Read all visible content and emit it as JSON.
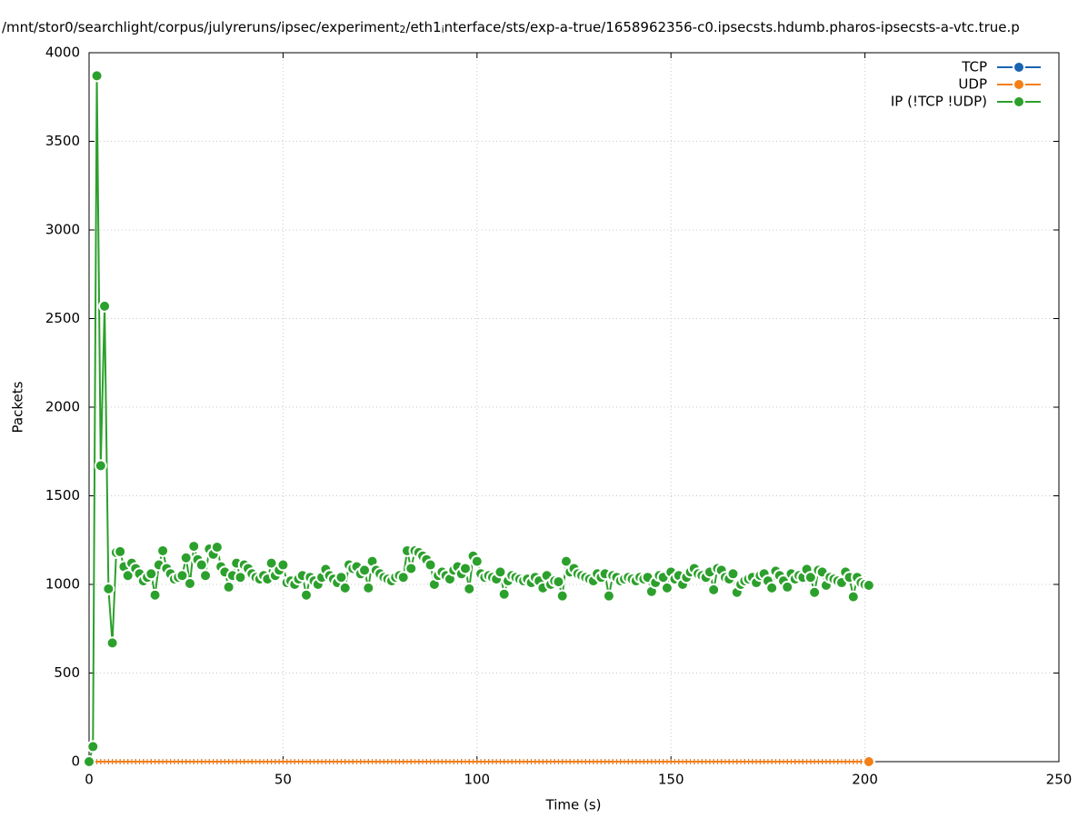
{
  "chart_data": {
    "type": "line",
    "title": [
      "/mnt/stor0/searchlight/corpus/julyreruns/ipsec/experiment",
      "2",
      "/eth1",
      "i",
      "nterface/sts/exp-a-true/1658962356-c0.ipsecsts.hdumb.pharos-ipsecsts-a-vtc.true.p"
    ],
    "x_label": "Time (s)",
    "y_label": "Packets",
    "xlim": [
      0,
      250
    ],
    "xticks": [
      0,
      50,
      100,
      150,
      200,
      250
    ],
    "ylim": [
      0,
      4000
    ],
    "yticks": [
      0,
      500,
      1000,
      1500,
      2000,
      2500,
      3000,
      3500,
      4000
    ],
    "grid": true,
    "legend": "top-right",
    "x": [
      0,
      1,
      2,
      3,
      4,
      5,
      6,
      7,
      8,
      9,
      10,
      11,
      12,
      13,
      14,
      15,
      16,
      17,
      18,
      19,
      20,
      21,
      22,
      23,
      24,
      25,
      26,
      27,
      28,
      29,
      30,
      31,
      32,
      33,
      34,
      35,
      36,
      37,
      38,
      39,
      40,
      41,
      42,
      43,
      44,
      45,
      46,
      47,
      48,
      49,
      50,
      51,
      52,
      53,
      54,
      55,
      56,
      57,
      58,
      59,
      60,
      61,
      62,
      63,
      64,
      65,
      66,
      67,
      68,
      69,
      70,
      71,
      72,
      73,
      74,
      75,
      76,
      77,
      78,
      79,
      80,
      81,
      82,
      83,
      84,
      85,
      86,
      87,
      88,
      89,
      90,
      91,
      92,
      93,
      94,
      95,
      96,
      97,
      98,
      99,
      100,
      101,
      102,
      103,
      104,
      105,
      106,
      107,
      108,
      109,
      110,
      111,
      112,
      113,
      114,
      115,
      116,
      117,
      118,
      119,
      120,
      121,
      122,
      123,
      124,
      125,
      126,
      127,
      128,
      129,
      130,
      131,
      132,
      133,
      134,
      135,
      136,
      137,
      138,
      139,
      140,
      141,
      142,
      143,
      144,
      145,
      146,
      147,
      148,
      149,
      150,
      151,
      152,
      153,
      154,
      155,
      156,
      157,
      158,
      159,
      160,
      161,
      162,
      163,
      164,
      165,
      166,
      167,
      168,
      169,
      170,
      171,
      172,
      173,
      174,
      175,
      176,
      177,
      178,
      179,
      180,
      181,
      182,
      183,
      184,
      185,
      186,
      187,
      188,
      189,
      190,
      191,
      192,
      193,
      194,
      195,
      196,
      197,
      198,
      199,
      200,
      201
    ],
    "series": [
      {
        "name": "TCP",
        "color": "#1a63b0",
        "values": [
          0,
          0,
          0,
          0,
          0,
          0,
          0,
          0,
          0,
          0,
          0,
          0,
          0,
          0,
          0,
          0,
          0,
          0,
          0,
          0,
          0,
          0,
          0,
          0,
          0,
          0,
          0,
          0,
          0,
          0,
          0,
          0,
          0,
          0,
          0,
          0,
          0,
          0,
          0,
          0,
          0,
          0,
          0,
          0,
          0,
          0,
          0,
          0,
          0,
          0,
          0,
          0,
          0,
          0,
          0,
          0,
          0,
          0,
          0,
          0,
          0,
          0,
          0,
          0,
          0,
          0,
          0,
          0,
          0,
          0,
          0,
          0,
          0,
          0,
          0,
          0,
          0,
          0,
          0,
          0,
          0,
          0,
          0,
          0,
          0,
          0,
          0,
          0,
          0,
          0,
          0,
          0,
          0,
          0,
          0,
          0,
          0,
          0,
          0,
          0,
          0,
          0,
          0,
          0,
          0,
          0,
          0,
          0,
          0,
          0,
          0,
          0,
          0,
          0,
          0,
          0,
          0,
          0,
          0,
          0,
          0,
          0,
          0,
          0,
          0,
          0,
          0,
          0,
          0,
          0,
          0,
          0,
          0,
          0,
          0,
          0,
          0,
          0,
          0,
          0,
          0,
          0,
          0,
          0,
          0,
          0,
          0,
          0,
          0,
          0,
          0,
          0,
          0,
          0,
          0,
          0,
          0,
          0,
          0,
          0,
          0,
          0,
          0,
          0,
          0,
          0,
          0,
          0,
          0,
          0,
          0,
          0,
          0,
          0,
          0,
          0,
          0,
          0,
          0,
          0,
          0,
          0,
          0,
          0,
          0,
          0,
          0,
          0,
          0,
          0,
          0,
          0,
          0,
          0,
          0,
          0,
          0,
          0,
          0,
          0,
          0,
          0
        ]
      },
      {
        "name": "UDP",
        "color": "#f47f17",
        "values": [
          0,
          0,
          0,
          0,
          0,
          0,
          0,
          0,
          0,
          0,
          0,
          0,
          0,
          0,
          0,
          0,
          0,
          0,
          0,
          0,
          0,
          0,
          0,
          0,
          0,
          0,
          0,
          0,
          0,
          0,
          0,
          0,
          0,
          0,
          0,
          0,
          0,
          0,
          0,
          0,
          0,
          0,
          0,
          0,
          0,
          0,
          0,
          0,
          0,
          0,
          0,
          0,
          0,
          0,
          0,
          0,
          0,
          0,
          0,
          0,
          0,
          0,
          0,
          0,
          0,
          0,
          0,
          0,
          0,
          0,
          0,
          0,
          0,
          0,
          0,
          0,
          0,
          0,
          0,
          0,
          0,
          0,
          0,
          0,
          0,
          0,
          0,
          0,
          0,
          0,
          0,
          0,
          0,
          0,
          0,
          0,
          0,
          0,
          0,
          0,
          0,
          0,
          0,
          0,
          0,
          0,
          0,
          0,
          0,
          0,
          0,
          0,
          0,
          0,
          0,
          0,
          0,
          0,
          0,
          0,
          0,
          0,
          0,
          0,
          0,
          0,
          0,
          0,
          0,
          0,
          0,
          0,
          0,
          0,
          0,
          0,
          0,
          0,
          0,
          0,
          0,
          0,
          0,
          0,
          0,
          0,
          0,
          0,
          0,
          0,
          0,
          0,
          0,
          0,
          0,
          0,
          0,
          0,
          0,
          0,
          0,
          0,
          0,
          0,
          0,
          0,
          0,
          0,
          0,
          0,
          0,
          0,
          0,
          0,
          0,
          0,
          0,
          0,
          0,
          0,
          0,
          0,
          0,
          0,
          0,
          0,
          0,
          0,
          0,
          0,
          0,
          0,
          0,
          0,
          0,
          0,
          0,
          0,
          0,
          0,
          0,
          0
        ]
      },
      {
        "name": "IP (!TCP  !UDP)",
        "color": "#2ca02c",
        "values": [
          0,
          85,
          3870,
          1670,
          2570,
          975,
          670,
          1180,
          1185,
          1100,
          1050,
          1120,
          1090,
          1060,
          1020,
          1040,
          1060,
          940,
          1110,
          1190,
          1090,
          1060,
          1030,
          1040,
          1050,
          1150,
          1005,
          1215,
          1140,
          1110,
          1050,
          1200,
          1170,
          1210,
          1100,
          1070,
          985,
          1050,
          1120,
          1040,
          1110,
          1090,
          1060,
          1040,
          1030,
          1050,
          1030,
          1120,
          1050,
          1080,
          1110,
          1010,
          1020,
          1000,
          1030,
          1050,
          940,
          1040,
          1020,
          1000,
          1040,
          1085,
          1050,
          1030,
          1010,
          1040,
          980,
          1110,
          1090,
          1100,
          1060,
          1080,
          980,
          1130,
          1080,
          1060,
          1040,
          1030,
          1020,
          1040,
          1050,
          1040,
          1190,
          1090,
          1190,
          1180,
          1160,
          1140,
          1110,
          1000,
          1050,
          1070,
          1050,
          1030,
          1080,
          1100,
          1060,
          1090,
          975,
          1160,
          1130,
          1060,
          1040,
          1050,
          1040,
          1030,
          1070,
          945,
          1020,
          1050,
          1040,
          1030,
          1020,
          1030,
          1010,
          1040,
          1020,
          980,
          1050,
          1000,
          1020,
          1015,
          935,
          1130,
          1070,
          1090,
          1060,
          1050,
          1040,
          1030,
          1020,
          1060,
          1040,
          1060,
          935,
          1050,
          1040,
          1020,
          1030,
          1040,
          1030,
          1020,
          1040,
          1030,
          1040,
          960,
          1010,
          1050,
          1040,
          980,
          1070,
          1030,
          1050,
          1000,
          1040,
          1070,
          1090,
          1060,
          1050,
          1040,
          1070,
          970,
          1090,
          1080,
          1040,
          1030,
          1060,
          955,
          1000,
          1020,
          1030,
          1040,
          1010,
          1050,
          1060,
          1020,
          980,
          1075,
          1050,
          1020,
          985,
          1060,
          1030,
          1050,
          1040,
          1085,
          1040,
          955,
          1080,
          1070,
          995,
          1040,
          1030,
          1020,
          1010,
          1070,
          1040,
          930,
          1040,
          1010,
          1000,
          995
        ]
      }
    ]
  }
}
